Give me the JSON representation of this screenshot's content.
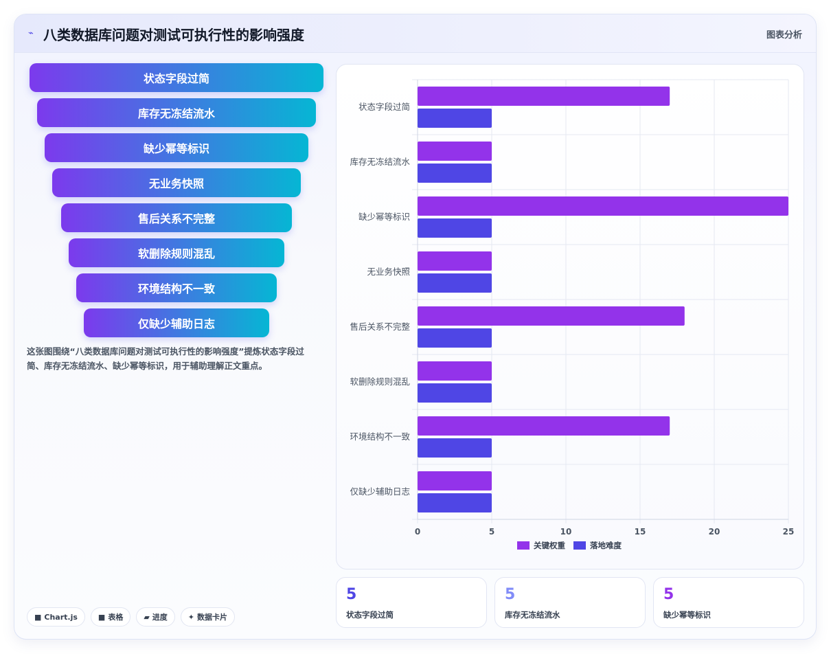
{
  "header": {
    "icon": "chart-line-icon",
    "title": "八类数据库问题对测试可执行性的影响强度",
    "tag": "图表分析"
  },
  "funnel": {
    "items": [
      "状态字段过简",
      "库存无冻结流水",
      "缺少幂等标识",
      "无业务快照",
      "售后关系不完整",
      "软删除规则混乱",
      "环境结构不一致",
      "仅缺少辅助日志"
    ]
  },
  "description": "这张图围绕“八类数据库问题对测试可执行性的影响强度”提炼状态字段过简、库存无冻结流水、缺少幂等标识，用于辅助理解正文重点。",
  "pills": [
    {
      "icon": "■",
      "label": "Chart.js"
    },
    {
      "icon": "■",
      "label": "表格"
    },
    {
      "icon": "▰",
      "label": "进度"
    },
    {
      "icon": "✦",
      "label": "数据卡片"
    }
  ],
  "stats": [
    {
      "value": "5",
      "label": "状态字段过简",
      "color": "#4f46e5"
    },
    {
      "value": "5",
      "label": "库存无冻结流水",
      "color": "#818cf8"
    },
    {
      "value": "5",
      "label": "缺少幂等标识",
      "color": "#9333ea"
    }
  ],
  "chart_data": {
    "type": "bar",
    "orientation": "horizontal",
    "categories": [
      "状态字段过简",
      "库存无冻结流水",
      "缺少幂等标识",
      "无业务快照",
      "售后关系不完整",
      "软删除规则混乱",
      "环境结构不一致",
      "仅缺少辅助日志"
    ],
    "series": [
      {
        "name": "关键权重",
        "color": "#9333ea",
        "values": [
          17,
          5,
          25,
          5,
          18,
          5,
          17,
          5
        ]
      },
      {
        "name": "落地难度",
        "color": "#4f46e5",
        "values": [
          5,
          5,
          5,
          5,
          5,
          5,
          5,
          5
        ]
      }
    ],
    "xlim": [
      0,
      25
    ],
    "xticks": [
      0,
      5,
      10,
      15,
      20,
      25
    ],
    "grid": true,
    "legend": "bottom"
  }
}
